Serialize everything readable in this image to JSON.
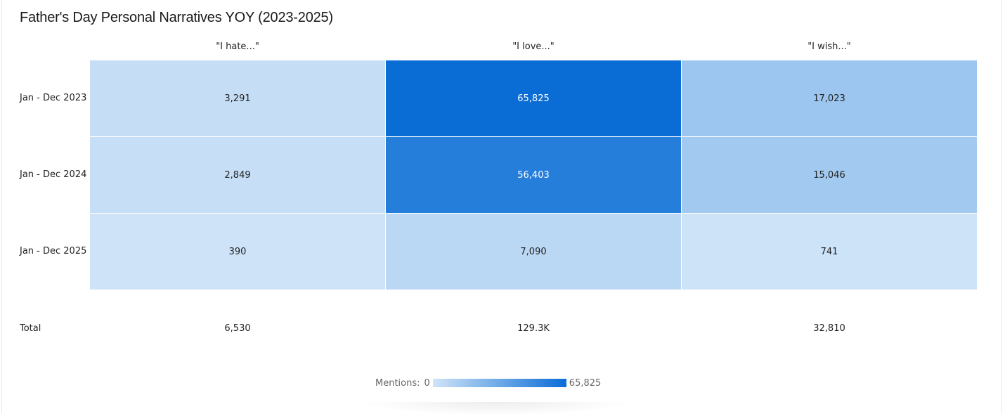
{
  "title": "Father's Day Personal Narratives YOY (2023-2025)",
  "chart_data": {
    "type": "heatmap",
    "title": "Father's Day Personal Narratives YOY (2023-2025)",
    "columns": [
      "\"I hate...\"",
      "\"I love...\"",
      "\"I wish...\""
    ],
    "rows": [
      "Jan - Dec 2023",
      "Jan - Dec 2024",
      "Jan - Dec 2025"
    ],
    "values": [
      [
        3291,
        65825,
        17023
      ],
      [
        2849,
        56403,
        15046
      ],
      [
        390,
        7090,
        741
      ]
    ],
    "cell_labels": [
      [
        "3,291",
        "65,825",
        "17,023"
      ],
      [
        "2,849",
        "56,403",
        "15,046"
      ],
      [
        "390",
        "7,090",
        "741"
      ]
    ],
    "totals_label": "Total",
    "totals": [
      "6,530",
      "129.3K",
      "32,810"
    ],
    "scale": {
      "min": 0,
      "max": 65825,
      "min_color": "#cfe4f8",
      "max_color": "#0a6dd6"
    }
  },
  "legend": {
    "label": "Mentions:",
    "min_label": "0",
    "max_label": "65,825"
  }
}
